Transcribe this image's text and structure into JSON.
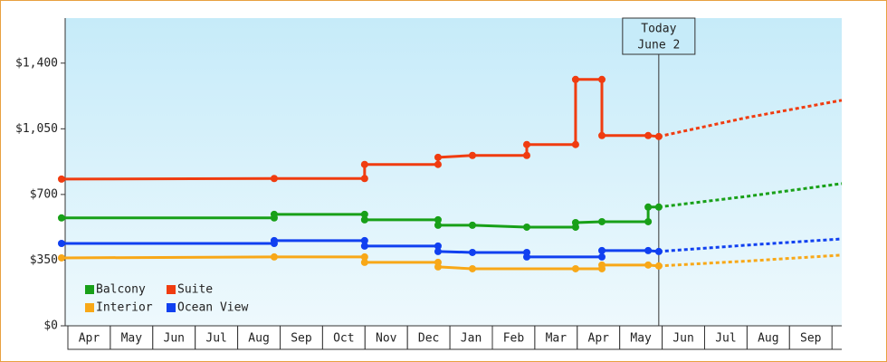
{
  "chart_data": {
    "type": "line",
    "step": true,
    "months": [
      "Apr",
      "May",
      "Jun",
      "Jul",
      "Aug",
      "Sep",
      "Oct",
      "Nov",
      "Dec",
      "Jan",
      "Feb",
      "Mar",
      "Apr",
      "May",
      "Jun",
      "Jul",
      "Aug",
      "Sep"
    ],
    "xlim": [
      0,
      18
    ],
    "ylim": [
      0,
      1640
    ],
    "yticks": [
      {
        "value": 0,
        "label": "$0"
      },
      {
        "value": 350,
        "label": "$350"
      },
      {
        "value": 700,
        "label": "$700"
      },
      {
        "value": 1050,
        "label": "$1,050"
      },
      {
        "value": 1400,
        "label": "$1,400"
      }
    ],
    "today": {
      "x": 13.92,
      "label_line1": "Today",
      "label_line2": "June 2"
    },
    "legend": "lower left",
    "series": [
      {
        "name": "Balcony",
        "color": "#18a018",
        "x": [
          -0.15,
          4.86,
          4.86,
          6.99,
          6.99,
          8.72,
          8.72,
          9.53,
          10.81,
          11.96,
          11.96,
          12.58,
          13.67,
          13.67,
          13.92
        ],
        "values": [
          575,
          575,
          594,
          594,
          565,
          565,
          536,
          536,
          526,
          526,
          550,
          555,
          555,
          633,
          633
        ],
        "forecast_x": [
          13.92,
          16.0,
          18.23
        ],
        "forecast_values": [
          633,
          690,
          758
        ]
      },
      {
        "name": "Suite",
        "color": "#f03c10",
        "x": [
          -0.15,
          4.86,
          6.99,
          6.99,
          8.72,
          8.72,
          9.53,
          10.81,
          10.81,
          11.96,
          11.96,
          12.58,
          12.58,
          13.67,
          13.92
        ],
        "values": [
          782,
          785,
          785,
          860,
          860,
          898,
          908,
          908,
          966,
          966,
          1313,
          1313,
          1014,
          1014,
          1009
        ],
        "forecast_x": [
          13.92,
          16.0,
          18.23
        ],
        "forecast_values": [
          1009,
          1110,
          1202
        ]
      },
      {
        "name": "Interior",
        "color": "#f8a818",
        "x": [
          -0.15,
          4.86,
          6.99,
          6.99,
          8.72,
          8.72,
          9.53,
          11.96,
          12.58,
          12.58,
          13.67,
          13.92
        ],
        "values": [
          362,
          367,
          367,
          338,
          338,
          314,
          304,
          304,
          304,
          324,
          324,
          319
        ],
        "forecast_x": [
          13.92,
          16.0,
          18.23
        ],
        "forecast_values": [
          319,
          345,
          377
        ]
      },
      {
        "name": "Ocean View",
        "color": "#1040f0",
        "x": [
          -0.15,
          4.86,
          4.86,
          6.99,
          6.99,
          8.72,
          8.72,
          9.53,
          10.81,
          10.81,
          12.58,
          12.58,
          13.67,
          13.92
        ],
        "values": [
          439,
          439,
          454,
          454,
          425,
          425,
          396,
          391,
          391,
          367,
          367,
          401,
          401,
          396
        ],
        "forecast_x": [
          13.92,
          16.0,
          18.23
        ],
        "forecast_values": [
          396,
          430,
          463
        ]
      }
    ]
  }
}
